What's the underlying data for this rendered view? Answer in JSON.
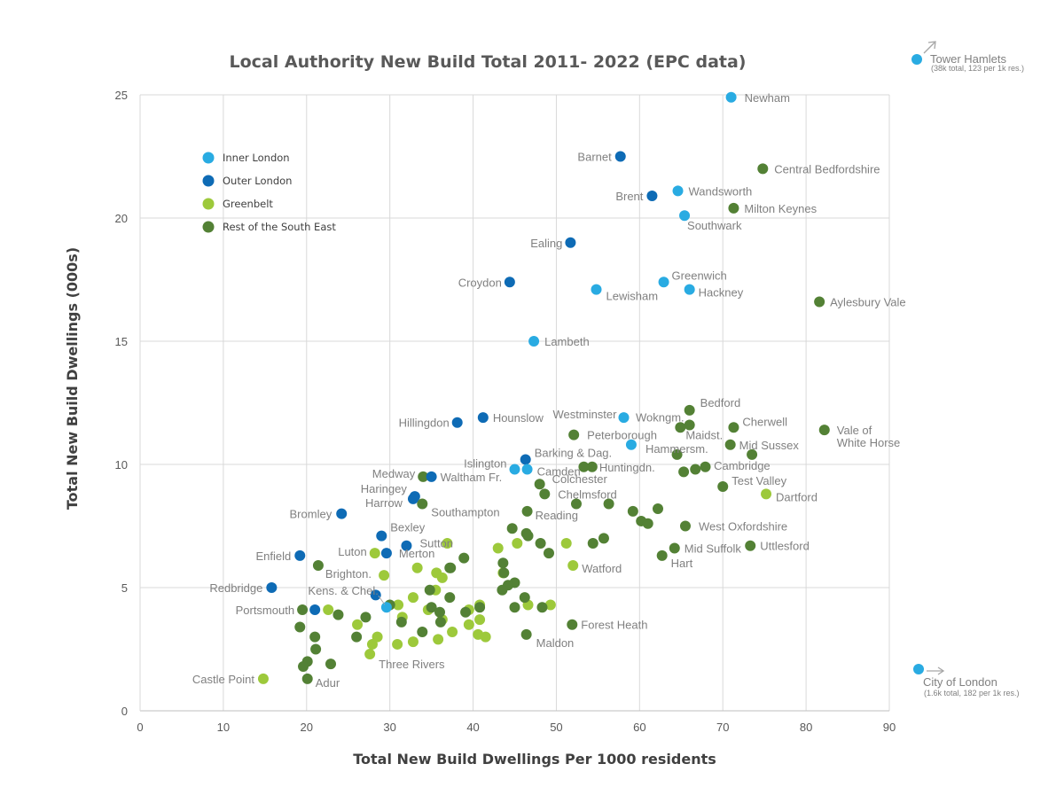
{
  "chart_data": {
    "type": "scatter",
    "title": "Local Authority New Build Total 2011- 2022 (EPC data)",
    "xlabel": "Total New Build Dwellings Per 1000 residents",
    "ylabel": "Total New Build Dwellings (000s)",
    "xlim": [
      0,
      90
    ],
    "ylim": [
      0,
      25
    ],
    "xticks": [
      0,
      10,
      20,
      30,
      40,
      50,
      60,
      70,
      80,
      90
    ],
    "yticks": [
      0,
      5,
      10,
      15,
      20,
      25
    ],
    "grid": "horizontal and vertical",
    "legend_position": "top-left",
    "series": [
      {
        "name": "Inner London",
        "color": "#29abe2",
        "points": [
          {
            "x": 71.0,
            "y": 24.9,
            "label": "Newham"
          },
          {
            "x": 64.6,
            "y": 21.1,
            "label": "Wandsworth"
          },
          {
            "x": 65.4,
            "y": 20.1,
            "label": "Southwark"
          },
          {
            "x": 62.9,
            "y": 17.4,
            "label": "Greenwich"
          },
          {
            "x": 66.0,
            "y": 17.1,
            "label": "Hackney"
          },
          {
            "x": 54.8,
            "y": 17.1,
            "label": "Lewisham"
          },
          {
            "x": 47.3,
            "y": 15.0,
            "label": "Lambeth"
          },
          {
            "x": 58.1,
            "y": 11.9,
            "label": "Westminster"
          },
          {
            "x": 59.0,
            "y": 10.8,
            "label": "Hammersm."
          },
          {
            "x": 45.0,
            "y": 9.8,
            "label": "Islington"
          },
          {
            "x": 46.5,
            "y": 9.8,
            "label": "Camden"
          },
          {
            "x": 29.6,
            "y": 4.2,
            "label": "Kens. & Chel."
          }
        ]
      },
      {
        "name": "Outer London",
        "color": "#0e6bb5",
        "points": [
          {
            "x": 57.7,
            "y": 22.5,
            "label": "Barnet"
          },
          {
            "x": 61.5,
            "y": 20.9,
            "label": "Brent"
          },
          {
            "x": 51.7,
            "y": 19.0,
            "label": "Ealing"
          },
          {
            "x": 44.4,
            "y": 17.4,
            "label": "Croydon"
          },
          {
            "x": 41.2,
            "y": 11.9,
            "label": "Hounslow"
          },
          {
            "x": 38.1,
            "y": 11.7,
            "label": "Hillingdon"
          },
          {
            "x": 46.3,
            "y": 10.2,
            "label": "Barking & Dag."
          },
          {
            "x": 35.0,
            "y": 9.5,
            "label": "Waltham Fr."
          },
          {
            "x": 33.0,
            "y": 8.7,
            "label": "Haringey"
          },
          {
            "x": 32.8,
            "y": 8.6,
            "label": "Harrow"
          },
          {
            "x": 24.2,
            "y": 8.0,
            "label": "Bromley"
          },
          {
            "x": 29.0,
            "y": 7.1,
            "label": "Bexley"
          },
          {
            "x": 32.0,
            "y": 6.7,
            "label": "Sutton"
          },
          {
            "x": 29.6,
            "y": 6.4,
            "label": "Merton"
          },
          {
            "x": 19.2,
            "y": 6.3,
            "label": "Enfield"
          },
          {
            "x": 15.8,
            "y": 5.0,
            "label": "Redbridge"
          },
          {
            "x": 28.3,
            "y": 4.7,
            "label": ""
          },
          {
            "x": 21.0,
            "y": 4.1,
            "label": ""
          }
        ]
      },
      {
        "name": "Greenbelt",
        "color": "#9dc93b",
        "points": [
          {
            "x": 75.2,
            "y": 8.8,
            "label": "Dartford"
          },
          {
            "x": 52.0,
            "y": 5.9,
            "label": "Watford"
          },
          {
            "x": 28.2,
            "y": 6.4,
            "label": "Luton"
          },
          {
            "x": 14.8,
            "y": 1.3,
            "label": "Castle Point"
          },
          {
            "x": 27.6,
            "y": 2.3,
            "label": "Three Rivers"
          },
          {
            "x": 36.9,
            "y": 6.8,
            "label": ""
          },
          {
            "x": 33.3,
            "y": 5.8,
            "label": ""
          },
          {
            "x": 29.3,
            "y": 5.5,
            "label": ""
          },
          {
            "x": 35.6,
            "y": 5.6,
            "label": ""
          },
          {
            "x": 36.3,
            "y": 5.4,
            "label": ""
          },
          {
            "x": 43.0,
            "y": 6.6,
            "label": ""
          },
          {
            "x": 45.3,
            "y": 6.8,
            "label": ""
          },
          {
            "x": 51.2,
            "y": 6.8,
            "label": ""
          },
          {
            "x": 43.6,
            "y": 5.6,
            "label": ""
          },
          {
            "x": 32.8,
            "y": 4.6,
            "label": ""
          },
          {
            "x": 35.5,
            "y": 4.9,
            "label": ""
          },
          {
            "x": 31.0,
            "y": 4.3,
            "label": ""
          },
          {
            "x": 34.6,
            "y": 4.1,
            "label": ""
          },
          {
            "x": 22.6,
            "y": 4.1,
            "label": ""
          },
          {
            "x": 31.5,
            "y": 3.8,
            "label": ""
          },
          {
            "x": 36.3,
            "y": 3.7,
            "label": ""
          },
          {
            "x": 40.8,
            "y": 3.7,
            "label": ""
          },
          {
            "x": 39.5,
            "y": 3.5,
            "label": ""
          },
          {
            "x": 26.1,
            "y": 3.5,
            "label": ""
          },
          {
            "x": 37.5,
            "y": 3.2,
            "label": ""
          },
          {
            "x": 40.6,
            "y": 3.1,
            "label": ""
          },
          {
            "x": 41.5,
            "y": 3.0,
            "label": ""
          },
          {
            "x": 28.5,
            "y": 3.0,
            "label": ""
          },
          {
            "x": 32.8,
            "y": 2.8,
            "label": ""
          },
          {
            "x": 30.9,
            "y": 2.7,
            "label": ""
          },
          {
            "x": 27.9,
            "y": 2.7,
            "label": ""
          },
          {
            "x": 35.8,
            "y": 2.9,
            "label": ""
          },
          {
            "x": 49.3,
            "y": 4.3,
            "label": ""
          },
          {
            "x": 46.6,
            "y": 4.3,
            "label": ""
          },
          {
            "x": 40.8,
            "y": 4.3,
            "label": ""
          },
          {
            "x": 39.5,
            "y": 4.1,
            "label": ""
          }
        ]
      },
      {
        "name": "Rest of the South East",
        "color": "#538135",
        "points": [
          {
            "x": 74.8,
            "y": 22.0,
            "label": "Central Bedfordshire"
          },
          {
            "x": 71.3,
            "y": 20.4,
            "label": "Milton Keynes"
          },
          {
            "x": 81.6,
            "y": 16.6,
            "label": "Aylesbury Vale"
          },
          {
            "x": 66.0,
            "y": 12.2,
            "label": "Bedford"
          },
          {
            "x": 71.3,
            "y": 11.5,
            "label": "Cherwell"
          },
          {
            "x": 82.2,
            "y": 11.4,
            "label": "Vale of"
          },
          {
            "x": 66.0,
            "y": 11.6,
            "label": "Wokngm."
          },
          {
            "x": 64.9,
            "y": 11.5,
            "label": "Maidst."
          },
          {
            "x": 52.1,
            "y": 11.2,
            "label": "Peterborough"
          },
          {
            "x": 70.9,
            "y": 10.8,
            "label": "Mid Sussex"
          },
          {
            "x": 73.5,
            "y": 10.4,
            "label": "Cambridge"
          },
          {
            "x": 64.5,
            "y": 10.4,
            "label": ""
          },
          {
            "x": 54.3,
            "y": 9.9,
            "label": "Huntingdn."
          },
          {
            "x": 53.3,
            "y": 9.9,
            "label": ""
          },
          {
            "x": 67.9,
            "y": 9.9,
            "label": ""
          },
          {
            "x": 66.7,
            "y": 9.8,
            "label": ""
          },
          {
            "x": 65.3,
            "y": 9.7,
            "label": ""
          },
          {
            "x": 70.0,
            "y": 9.1,
            "label": "Test Valley"
          },
          {
            "x": 48.0,
            "y": 9.2,
            "label": "Colchester"
          },
          {
            "x": 48.6,
            "y": 8.8,
            "label": "Chelmsford"
          },
          {
            "x": 34.0,
            "y": 9.5,
            "label": "Medway"
          },
          {
            "x": 33.9,
            "y": 8.4,
            "label": "Southampton"
          },
          {
            "x": 52.4,
            "y": 8.4,
            "label": ""
          },
          {
            "x": 56.3,
            "y": 8.4,
            "label": ""
          },
          {
            "x": 62.2,
            "y": 8.2,
            "label": ""
          },
          {
            "x": 59.2,
            "y": 8.1,
            "label": ""
          },
          {
            "x": 46.5,
            "y": 8.1,
            "label": "Reading"
          },
          {
            "x": 60.2,
            "y": 7.7,
            "label": ""
          },
          {
            "x": 61.0,
            "y": 7.6,
            "label": ""
          },
          {
            "x": 65.5,
            "y": 7.5,
            "label": "West Oxfordshire"
          },
          {
            "x": 44.7,
            "y": 7.4,
            "label": ""
          },
          {
            "x": 46.4,
            "y": 7.2,
            "label": ""
          },
          {
            "x": 46.6,
            "y": 7.1,
            "label": ""
          },
          {
            "x": 55.7,
            "y": 7.0,
            "label": ""
          },
          {
            "x": 54.4,
            "y": 6.8,
            "label": ""
          },
          {
            "x": 48.1,
            "y": 6.8,
            "label": ""
          },
          {
            "x": 73.3,
            "y": 6.7,
            "label": "Uttlesford"
          },
          {
            "x": 64.2,
            "y": 6.6,
            "label": "Mid Suffolk"
          },
          {
            "x": 49.1,
            "y": 6.4,
            "label": ""
          },
          {
            "x": 62.7,
            "y": 6.3,
            "label": "Hart"
          },
          {
            "x": 21.4,
            "y": 5.9,
            "label": "Brighton."
          },
          {
            "x": 38.9,
            "y": 6.2,
            "label": ""
          },
          {
            "x": 43.6,
            "y": 6.0,
            "label": ""
          },
          {
            "x": 37.3,
            "y": 5.8,
            "label": ""
          },
          {
            "x": 37.2,
            "y": 5.8,
            "label": ""
          },
          {
            "x": 43.7,
            "y": 5.6,
            "label": ""
          },
          {
            "x": 45.0,
            "y": 5.2,
            "label": ""
          },
          {
            "x": 44.2,
            "y": 5.1,
            "label": ""
          },
          {
            "x": 43.5,
            "y": 4.9,
            "label": ""
          },
          {
            "x": 34.8,
            "y": 4.9,
            "label": ""
          },
          {
            "x": 46.2,
            "y": 4.6,
            "label": ""
          },
          {
            "x": 37.2,
            "y": 4.6,
            "label": ""
          },
          {
            "x": 30.0,
            "y": 4.3,
            "label": ""
          },
          {
            "x": 48.3,
            "y": 4.2,
            "label": ""
          },
          {
            "x": 45.0,
            "y": 4.2,
            "label": ""
          },
          {
            "x": 40.8,
            "y": 4.2,
            "label": ""
          },
          {
            "x": 35.0,
            "y": 4.2,
            "label": ""
          },
          {
            "x": 19.5,
            "y": 4.1,
            "label": "Portsmouth"
          },
          {
            "x": 39.1,
            "y": 4.0,
            "label": ""
          },
          {
            "x": 36.0,
            "y": 4.0,
            "label": ""
          },
          {
            "x": 23.8,
            "y": 3.9,
            "label": ""
          },
          {
            "x": 27.1,
            "y": 3.8,
            "label": ""
          },
          {
            "x": 31.4,
            "y": 3.6,
            "label": ""
          },
          {
            "x": 36.1,
            "y": 3.6,
            "label": ""
          },
          {
            "x": 51.9,
            "y": 3.5,
            "label": "Forest Heath"
          },
          {
            "x": 19.2,
            "y": 3.4,
            "label": ""
          },
          {
            "x": 33.9,
            "y": 3.2,
            "label": ""
          },
          {
            "x": 46.4,
            "y": 3.1,
            "label": "Maldon"
          },
          {
            "x": 26.0,
            "y": 3.0,
            "label": ""
          },
          {
            "x": 21.0,
            "y": 3.0,
            "label": ""
          },
          {
            "x": 21.1,
            "y": 2.5,
            "label": ""
          },
          {
            "x": 20.1,
            "y": 2.0,
            "label": ""
          },
          {
            "x": 22.9,
            "y": 1.9,
            "label": ""
          },
          {
            "x": 19.6,
            "y": 1.8,
            "label": ""
          },
          {
            "x": 20.1,
            "y": 1.3,
            "label": "Adur"
          }
        ]
      }
    ],
    "annotations": [
      {
        "title": "Tower Hamlets",
        "subtitle": "(38k total, 123 per 1k res.)",
        "direction": "up-right",
        "color": "#29abe2"
      },
      {
        "title": "City of London",
        "subtitle": "(1.6k total, 182 per 1k res.)",
        "direction": "right",
        "color": "#29abe2"
      }
    ],
    "extra_labels": [
      {
        "text": "White Horse",
        "anchor_series": 3,
        "anchor_point": 5
      }
    ]
  }
}
